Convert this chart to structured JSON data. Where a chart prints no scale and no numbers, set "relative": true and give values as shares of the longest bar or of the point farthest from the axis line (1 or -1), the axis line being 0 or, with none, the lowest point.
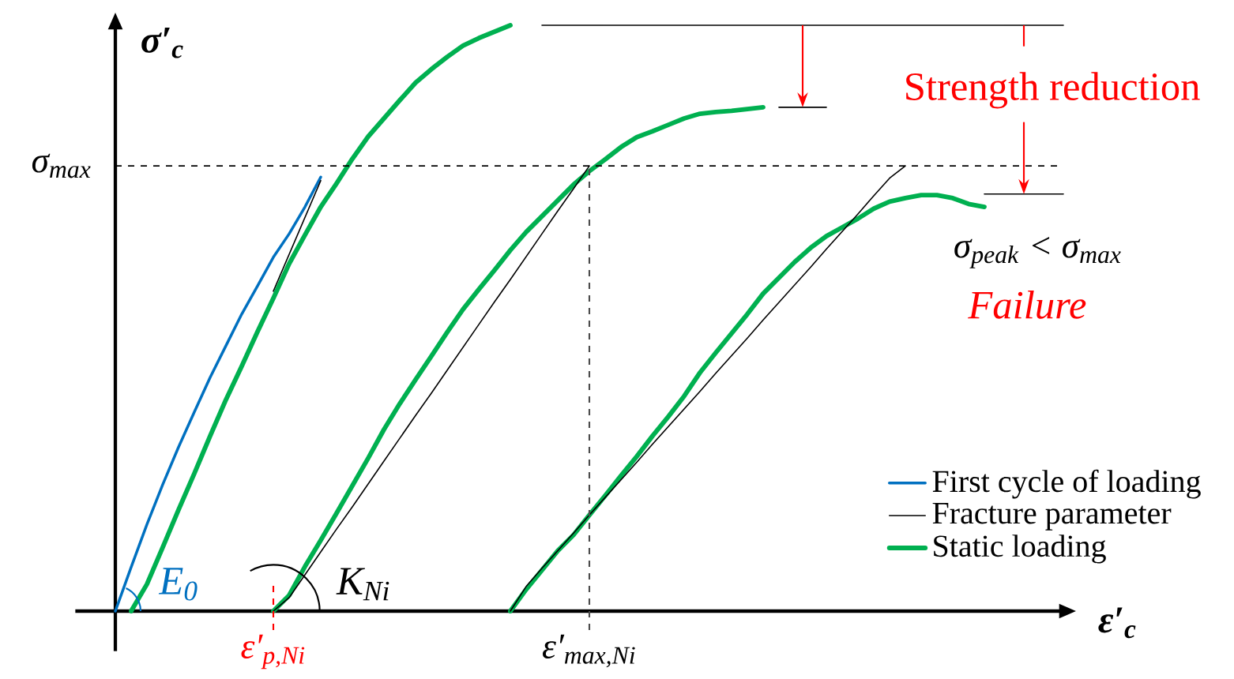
{
  "chart_data": {
    "type": "line",
    "relative": true,
    "xlabel": "ε′$_{c}$",
    "ylabel": "σ′$_{c}$",
    "legend": "bottom right",
    "categories": [
      null,
      null,
      null,
      null,
      null,
      null,
      null,
      null,
      null,
      null,
      "ε′$_{p,Ni}$",
      null,
      null,
      null,
      null,
      null,
      null,
      null,
      null,
      null,
      null,
      null,
      null,
      null,
      null,
      null,
      null,
      null,
      null,
      null,
      "ε′$_{max,Ni}$",
      null,
      null,
      null,
      null,
      null,
      null,
      null,
      null,
      null,
      null,
      null,
      null,
      null,
      null,
      null,
      null,
      null,
      null,
      null,
      null,
      null,
      null,
      null,
      null,
      null,
      null,
      null,
      null,
      null,
      null
    ],
    "series": [
      {
        "name": "First cycle of loading",
        "color": "#0070c0",
        "values": [
          0,
          0.075,
          0.148,
          0.216,
          0.28,
          0.34,
          0.399,
          0.453,
          0.507,
          0.555,
          0.604,
          0.644,
          0.69,
          0.741,
          null,
          null,
          null,
          null,
          null,
          null,
          null,
          null,
          null,
          null,
          null,
          null,
          null,
          null,
          null,
          null,
          null,
          null,
          null,
          null,
          null,
          null,
          null,
          null,
          null,
          null,
          null,
          null,
          null,
          null,
          null,
          null,
          null,
          null,
          null,
          null,
          null,
          null,
          null,
          null,
          null,
          null,
          null,
          null,
          null,
          null,
          null
        ]
      },
      {
        "name": "Fracture parameter",
        "color": "#000000",
        "values": [
          null,
          null,
          null,
          null,
          null,
          null,
          null,
          null,
          null,
          null,
          0.546,
          0.609,
          0.672,
          0.735,
          null,
          null,
          null,
          null,
          null,
          null,
          null,
          null,
          null,
          null,
          null,
          null,
          null,
          null,
          null,
          null,
          null,
          null,
          null,
          null,
          null,
          null,
          null,
          null,
          null,
          null,
          null,
          null,
          null,
          null,
          null,
          null,
          null,
          null,
          null,
          null,
          null,
          null,
          null,
          null,
          null,
          null,
          null,
          null,
          null,
          null,
          null
        ]
      },
      {
        "name": "Static loading",
        "color": "#00b050",
        "values": [
          null,
          0,
          0.046,
          0.109,
          0.173,
          0.235,
          0.299,
          0.361,
          0.418,
          0.477,
          0.534,
          0.593,
          0.642,
          0.69,
          0.73,
          0.772,
          0.81,
          0.841,
          0.872,
          0.902,
          0.925,
          0.946,
          0.965,
          0.978,
          0.989,
          1.0,
          null,
          null,
          null,
          null,
          null,
          null,
          null,
          null,
          null,
          null,
          null,
          null,
          null,
          null,
          null,
          null,
          null,
          null,
          null,
          null,
          null,
          null,
          null,
          null,
          null,
          null,
          null,
          null,
          null,
          null,
          null,
          null,
          null,
          null,
          null
        ]
      },
      {
        "color": "#00b050",
        "values": [
          null,
          null,
          null,
          null,
          null,
          null,
          null,
          null,
          null,
          null,
          0,
          0.027,
          0.076,
          0.121,
          0.167,
          0.214,
          0.261,
          0.31,
          0.354,
          0.395,
          0.435,
          0.476,
          0.515,
          0.549,
          0.582,
          0.616,
          0.647,
          0.674,
          0.701,
          0.728,
          0.751,
          0.771,
          0.792,
          0.809,
          0.819,
          0.83,
          0.841,
          0.849,
          0.852,
          0.854,
          0.857,
          0.86,
          null,
          null,
          null,
          null,
          null,
          null,
          null,
          null,
          null,
          null,
          null,
          null,
          null,
          null,
          null,
          null,
          null,
          null,
          null
        ]
      },
      {
        "color": "#00b050",
        "values": [
          null,
          null,
          null,
          null,
          null,
          null,
          null,
          null,
          null,
          null,
          null,
          null,
          null,
          null,
          null,
          null,
          null,
          null,
          null,
          null,
          null,
          null,
          null,
          null,
          null,
          0,
          0.037,
          0.07,
          0.103,
          0.13,
          0.164,
          0.197,
          0.231,
          0.264,
          0.299,
          0.332,
          0.367,
          0.407,
          0.441,
          0.474,
          0.507,
          0.542,
          0.569,
          0.596,
          0.62,
          0.64,
          0.655,
          0.67,
          0.687,
          0.699,
          0.705,
          0.71,
          0.71,
          0.705,
          0.695,
          0.69,
          null,
          null,
          null,
          null,
          null
        ]
      },
      {
        "color": "#000000",
        "values": [
          null,
          null,
          null,
          null,
          null,
          null,
          null,
          null,
          null,
          null,
          0,
          0.023,
          0.062,
          0.101,
          0.14,
          0.178,
          0.217,
          0.256,
          0.295,
          0.334,
          0.372,
          0.411,
          0.45,
          0.489,
          0.528,
          0.566,
          0.605,
          0.644,
          0.683,
          0.721,
          0.76,
          null,
          null,
          null,
          null,
          null,
          null,
          null,
          null,
          null,
          null,
          null,
          null,
          null,
          null,
          null,
          null,
          null,
          null,
          null,
          null,
          null,
          null,
          null,
          null,
          null,
          null,
          null,
          null,
          null,
          null
        ]
      },
      {
        "color": "#000000",
        "values": [
          null,
          null,
          null,
          null,
          null,
          null,
          null,
          null,
          null,
          null,
          null,
          null,
          null,
          null,
          null,
          null,
          null,
          null,
          null,
          null,
          null,
          null,
          null,
          null,
          null,
          0,
          0.042,
          0.073,
          0.103,
          0.133,
          0.164,
          0.194,
          0.224,
          0.254,
          0.285,
          0.315,
          0.345,
          0.375,
          0.406,
          0.436,
          0.466,
          0.497,
          0.527,
          0.557,
          0.587,
          0.618,
          0.648,
          0.678,
          0.709,
          0.739,
          0.76,
          null,
          null,
          null,
          null,
          null,
          null,
          null,
          null,
          null,
          null
        ]
      },
      {
        "color": "#000000",
        "values": [
          null,
          null,
          null,
          null,
          null,
          null,
          null,
          null,
          null,
          null,
          null,
          null,
          null,
          null,
          null,
          null,
          null,
          null,
          null,
          null,
          null,
          null,
          null,
          null,
          null,
          null,
          null,
          1.0,
          1.0,
          1.0,
          1.0,
          1.0,
          1.0,
          1.0,
          1.0,
          1.0,
          1.0,
          1.0,
          1.0,
          1.0,
          1.0,
          1.0,
          1.0,
          1.0,
          1.0,
          1.0,
          1.0,
          1.0,
          1.0,
          1.0,
          1.0,
          1.0,
          1.0,
          1.0,
          1.0,
          1.0,
          1.0,
          1.0,
          1.0,
          1.0,
          1.0
        ]
      },
      {
        "color": "#000000",
        "values": [
          null,
          null,
          null,
          null,
          null,
          null,
          null,
          null,
          null,
          null,
          null,
          null,
          null,
          null,
          null,
          null,
          null,
          null,
          null,
          null,
          null,
          null,
          null,
          null,
          null,
          null,
          null,
          null,
          null,
          null,
          null,
          null,
          null,
          null,
          null,
          null,
          null,
          null,
          null,
          null,
          null,
          null,
          0.86,
          0.86,
          0.86,
          0.86,
          null,
          null,
          null,
          null,
          null,
          null,
          null,
          null,
          null,
          null,
          null,
          null,
          null,
          null,
          null
        ]
      },
      {
        "color": "#000000",
        "values": [
          null,
          null,
          null,
          null,
          null,
          null,
          null,
          null,
          null,
          null,
          null,
          null,
          null,
          null,
          null,
          null,
          null,
          null,
          null,
          null,
          null,
          null,
          null,
          null,
          null,
          null,
          null,
          null,
          null,
          null,
          null,
          null,
          null,
          null,
          null,
          null,
          null,
          null,
          null,
          null,
          null,
          null,
          null,
          null,
          null,
          null,
          null,
          null,
          null,
          null,
          null,
          null,
          null,
          null,
          null,
          0.712,
          0.712,
          0.712,
          0.712,
          0.712,
          0.712
        ]
      }
    ],
    "ref_lines": [
      {
        "axis": "y",
        "value": 0.76,
        "label": "σ$_{max}$",
        "line_style": "dashed"
      }
    ],
    "annotations": [
      "Strength reduction",
      "σ$_{peak}$ < σ$_{max}$",
      "Failure",
      "E$_{0}$",
      "K$_{Ni}$"
    ]
  }
}
